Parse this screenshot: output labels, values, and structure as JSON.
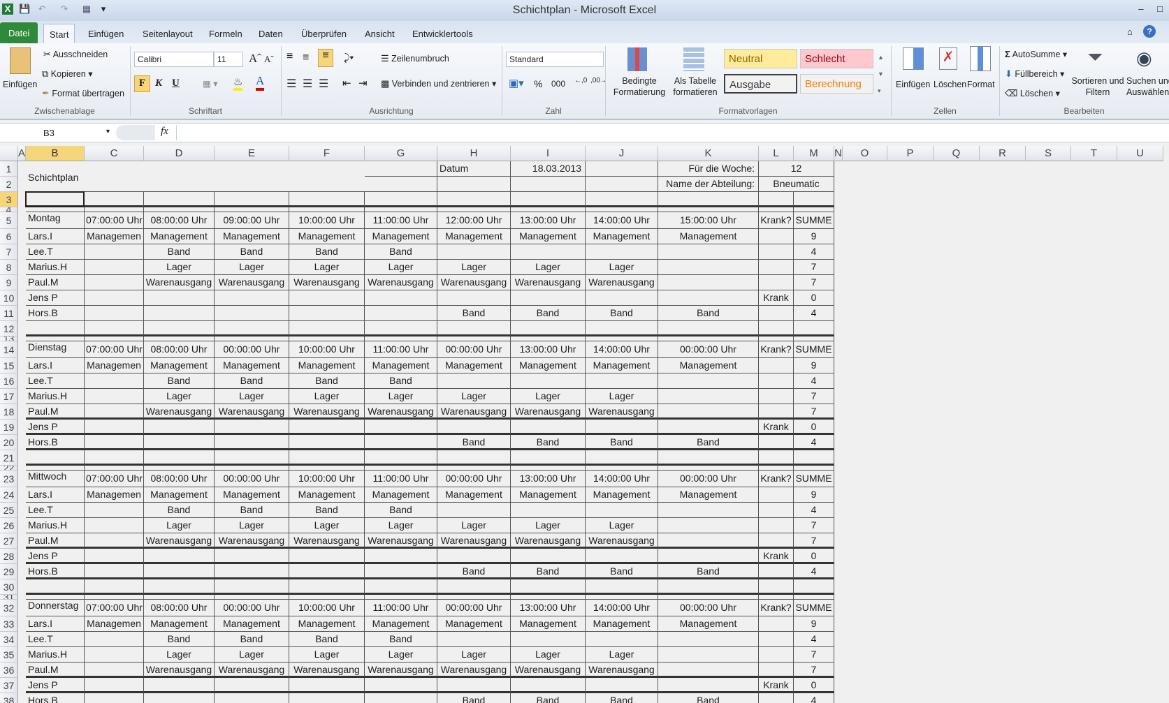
{
  "window": {
    "title": "Schichtplan - Microsoft Excel"
  },
  "tabs": [
    "Datei",
    "Start",
    "Einfügen",
    "Seitenlayout",
    "Formeln",
    "Daten",
    "Überprüfen",
    "Ansicht",
    "Entwicklertools"
  ],
  "ribbon": {
    "clipboard": {
      "paste": "Einfügen",
      "cut": "Ausschneiden",
      "copy": "Kopieren",
      "format_painter": "Format übertragen",
      "label": "Zwischenablage"
    },
    "font": {
      "name": "Calibri",
      "size": "11",
      "bold": "F",
      "italic": "K",
      "underline": "U",
      "label": "Schriftart"
    },
    "alignment": {
      "wrap": "Zeilenumbruch",
      "merge": "Verbinden und zentrieren",
      "label": "Ausrichtung"
    },
    "number": {
      "format": "Standard",
      "percent": "%",
      "thousands": "000",
      "label": "Zahl"
    },
    "styles": {
      "conditional": "Bedingte Formatierung",
      "as_table": "Als Tabelle formatieren",
      "neutral": "Neutral",
      "bad": "Schlecht",
      "output": "Ausgabe",
      "calculation": "Berechnung",
      "label": "Formatvorlagen"
    },
    "cells": {
      "insert": "Einfügen",
      "delete": "Löschen",
      "format": "Format",
      "label": "Zellen"
    },
    "editing": {
      "autosum": "AutoSumme",
      "fill": "Füllbereich",
      "clear": "Löschen",
      "sort": "Sortieren und Filtern",
      "find": "Suchen und Auswählen",
      "label": "Bearbeiten"
    }
  },
  "formula_bar": {
    "name_box": "B3",
    "fx": "fx",
    "value": ""
  },
  "colors": {
    "selected_header": "#f5d67a",
    "file_tab": "#2e8a3a",
    "neutral": "#ffeb9c",
    "bad": "#ffc7ce"
  },
  "sheet": {
    "columns": [
      "A",
      "B",
      "C",
      "D",
      "E",
      "F",
      "G",
      "H",
      "I",
      "J",
      "K",
      "L",
      "M",
      "N",
      "O",
      "P",
      "Q",
      "R",
      "S",
      "T",
      "U"
    ],
    "selected_cell": "B3",
    "rows": [
      {
        "n": "1",
        "c": [
          "Schichtplan",
          "",
          "",
          "",
          "",
          "",
          "Datum",
          "18.03.2013",
          "",
          "Für die Woche:",
          "12",
          ""
        ]
      },
      {
        "n": "2",
        "c": [
          "",
          "",
          "",
          "",
          "",
          "",
          "",
          "",
          "",
          "Name der Abteilung:",
          "Bneumatic",
          ""
        ]
      },
      {
        "n": "3",
        "c": [
          "",
          "",
          "",
          "",
          "",
          "",
          "",
          "",
          "",
          "",
          "",
          ""
        ]
      },
      {
        "n": "4",
        "c": [
          "",
          "",
          "",
          "",
          "",
          "",
          "",
          "",
          "",
          "",
          "",
          ""
        ]
      },
      {
        "n": "5",
        "c": [
          "Montag",
          "07:00:00 Uhr",
          "08:00:00 Uhr",
          "09:00:00 Uhr",
          "10:00:00 Uhr",
          "11:00:00 Uhr",
          "12:00:00 Uhr",
          "13:00:00 Uhr",
          "14:00:00 Uhr",
          "15:00:00 Uhr",
          "Krank?",
          "SUMME"
        ]
      },
      {
        "n": "6",
        "c": [
          "Lars.I",
          "Managemen",
          "Management",
          "Management",
          "Management",
          "Management",
          "Management",
          "Management",
          "Management",
          "Management",
          "",
          "9"
        ]
      },
      {
        "n": "7",
        "c": [
          "Lee.T",
          "",
          "Band",
          "Band",
          "Band",
          "Band",
          "",
          "",
          "",
          "",
          "",
          "4"
        ]
      },
      {
        "n": "8",
        "c": [
          "Marius.H",
          "",
          "Lager",
          "Lager",
          "Lager",
          "Lager",
          "Lager",
          "Lager",
          "Lager",
          "",
          "",
          "7"
        ]
      },
      {
        "n": "9",
        "c": [
          "Paul.M",
          "",
          "Warenausgang",
          "Warenausgang",
          "Warenausgang",
          "Warenausgang",
          "Warenausgang",
          "Warenausgang",
          "Warenausgang",
          "",
          "",
          "7"
        ]
      },
      {
        "n": "10",
        "c": [
          "Jens P",
          "",
          "",
          "",
          "",
          "",
          "",
          "",
          "",
          "",
          "Krank",
          "0"
        ]
      },
      {
        "n": "11",
        "c": [
          "Hors.B",
          "",
          "",
          "",
          "",
          "",
          "Band",
          "Band",
          "Band",
          "Band",
          "",
          "4"
        ]
      },
      {
        "n": "12",
        "c": [
          "",
          "",
          "",
          "",
          "",
          "",
          "",
          "",
          "",
          "",
          "",
          ""
        ]
      },
      {
        "n": "13",
        "c": [
          "",
          "",
          "",
          "",
          "",
          "",
          "",
          "",
          "",
          "",
          "",
          ""
        ]
      },
      {
        "n": "14",
        "c": [
          "Dienstag",
          "07:00:00 Uhr",
          "08:00:00 Uhr",
          "00:00:00 Uhr",
          "10:00:00 Uhr",
          "11:00:00 Uhr",
          "00:00:00 Uhr",
          "13:00:00 Uhr",
          "14:00:00 Uhr",
          "00:00:00 Uhr",
          "Krank?",
          "SUMME"
        ]
      },
      {
        "n": "15",
        "c": [
          "Lars.I",
          "Managemen",
          "Management",
          "Management",
          "Management",
          "Management",
          "Management",
          "Management",
          "Management",
          "Management",
          "",
          "9"
        ]
      },
      {
        "n": "16",
        "c": [
          "Lee.T",
          "",
          "Band",
          "Band",
          "Band",
          "Band",
          "",
          "",
          "",
          "",
          "",
          "4"
        ]
      },
      {
        "n": "17",
        "c": [
          "Marius.H",
          "",
          "Lager",
          "Lager",
          "Lager",
          "Lager",
          "Lager",
          "Lager",
          "Lager",
          "",
          "",
          "7"
        ]
      },
      {
        "n": "18",
        "c": [
          "Paul.M",
          "",
          "Warenausgang",
          "Warenausgang",
          "Warenausgang",
          "Warenausgang",
          "Warenausgang",
          "Warenausgang",
          "Warenausgang",
          "",
          "",
          "7"
        ]
      },
      {
        "n": "19",
        "c": [
          "Jens P",
          "",
          "",
          "",
          "",
          "",
          "",
          "",
          "",
          "",
          "Krank",
          "0"
        ]
      },
      {
        "n": "20",
        "c": [
          "Hors.B",
          "",
          "",
          "",
          "",
          "",
          "Band",
          "Band",
          "Band",
          "Band",
          "",
          "4"
        ]
      },
      {
        "n": "21",
        "c": [
          "",
          "",
          "",
          "",
          "",
          "",
          "",
          "",
          "",
          "",
          "",
          ""
        ]
      },
      {
        "n": "22",
        "c": [
          "",
          "",
          "",
          "",
          "",
          "",
          "",
          "",
          "",
          "",
          "",
          ""
        ]
      },
      {
        "n": "23",
        "c": [
          "Mittwoch",
          "07:00:00 Uhr",
          "08:00:00 Uhr",
          "00:00:00 Uhr",
          "10:00:00 Uhr",
          "11:00:00 Uhr",
          "00:00:00 Uhr",
          "13:00:00 Uhr",
          "14:00:00 Uhr",
          "00:00:00 Uhr",
          "Krank?",
          "SUMME"
        ]
      },
      {
        "n": "24",
        "c": [
          "Lars.I",
          "Managemen",
          "Management",
          "Management",
          "Management",
          "Management",
          "Management",
          "Management",
          "Management",
          "Management",
          "",
          "9"
        ]
      },
      {
        "n": "25",
        "c": [
          "Lee.T",
          "",
          "Band",
          "Band",
          "Band",
          "Band",
          "",
          "",
          "",
          "",
          "",
          "4"
        ]
      },
      {
        "n": "26",
        "c": [
          "Marius.H",
          "",
          "Lager",
          "Lager",
          "Lager",
          "Lager",
          "Lager",
          "Lager",
          "Lager",
          "",
          "",
          "7"
        ]
      },
      {
        "n": "27",
        "c": [
          "Paul.M",
          "",
          "Warenausgang",
          "Warenausgang",
          "Warenausgang",
          "Warenausgang",
          "Warenausgang",
          "Warenausgang",
          "Warenausgang",
          "",
          "",
          "7"
        ]
      },
      {
        "n": "28",
        "c": [
          "Jens P",
          "",
          "",
          "",
          "",
          "",
          "",
          "",
          "",
          "",
          "Krank",
          "0"
        ]
      },
      {
        "n": "29",
        "c": [
          "Hors.B",
          "",
          "",
          "",
          "",
          "",
          "Band",
          "Band",
          "Band",
          "Band",
          "",
          "4"
        ]
      },
      {
        "n": "30",
        "c": [
          "",
          "",
          "",
          "",
          "",
          "",
          "",
          "",
          "",
          "",
          "",
          ""
        ]
      },
      {
        "n": "31",
        "c": [
          "",
          "",
          "",
          "",
          "",
          "",
          "",
          "",
          "",
          "",
          "",
          ""
        ]
      },
      {
        "n": "32",
        "c": [
          "Donnerstag",
          "07:00:00 Uhr",
          "08:00:00 Uhr",
          "00:00:00 Uhr",
          "10:00:00 Uhr",
          "11:00:00 Uhr",
          "00:00:00 Uhr",
          "13:00:00 Uhr",
          "14:00:00 Uhr",
          "00:00:00 Uhr",
          "Krank?",
          "SUMME"
        ]
      },
      {
        "n": "33",
        "c": [
          "Lars.I",
          "Managemen",
          "Management",
          "Management",
          "Management",
          "Management",
          "Management",
          "Management",
          "Management",
          "Management",
          "",
          "9"
        ]
      },
      {
        "n": "34",
        "c": [
          "Lee.T",
          "",
          "Band",
          "Band",
          "Band",
          "Band",
          "",
          "",
          "",
          "",
          "",
          "4"
        ]
      },
      {
        "n": "35",
        "c": [
          "Marius.H",
          "",
          "Lager",
          "Lager",
          "Lager",
          "Lager",
          "Lager",
          "Lager",
          "Lager",
          "",
          "",
          "7"
        ]
      },
      {
        "n": "36",
        "c": [
          "Paul.M",
          "",
          "Warenausgang",
          "Warenausgang",
          "Warenausgang",
          "Warenausgang",
          "Warenausgang",
          "Warenausgang",
          "Warenausgang",
          "",
          "",
          "7"
        ]
      },
      {
        "n": "37",
        "c": [
          "Jens P",
          "",
          "",
          "",
          "",
          "",
          "",
          "",
          "",
          "",
          "Krank",
          "0"
        ]
      },
      {
        "n": "38",
        "c": [
          "Hors.B",
          "",
          "",
          "",
          "",
          "",
          "Band",
          "Band",
          "Band",
          "Band",
          "",
          "4"
        ]
      }
    ]
  }
}
